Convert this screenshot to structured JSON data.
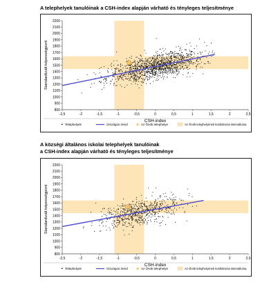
{
  "titles": {
    "chart1": "A telephelyek tanulóinak a CSH-index alapján várható és tényleges teljesítménye",
    "chart2_line1": "A községi általános iskolai telephelyek tanulóinak",
    "chart2_line2": "a CSH-index alapján várható és tényleges teljesítménye"
  },
  "colors": {
    "band": "#fde5b8",
    "trend": "#4a4ad0",
    "points": "#111111",
    "own_site": "#f6c36a",
    "axis": "#555555"
  },
  "chart_data": [
    {
      "type": "scatter",
      "xlabel": "CSH-index",
      "ylabel": "Standardizált képességpont",
      "xlim": [
        -2.5,
        2.5
      ],
      "ylim": [
        800,
        2200
      ],
      "xticks": [
        "-2,5",
        "-2",
        "-1,5",
        "-1",
        "-0,5",
        "0",
        "0,5",
        "1",
        "1,5",
        "2",
        "2,5"
      ],
      "yticks": [
        "800",
        "900",
        "1000",
        "1100",
        "1200",
        "1300",
        "1400",
        "1500",
        "1600",
        "1700",
        "1800",
        "1900",
        "2000",
        "2100",
        "2200"
      ],
      "confidence_band": {
        "x": [
          -1.1,
          -0.3
        ],
        "y": [
          1440,
          1640
        ]
      },
      "own_site": {
        "x": -0.7,
        "y": 1540
      },
      "trend": {
        "x": [
          -2.5,
          1.6
        ],
        "y": [
          1180,
          1670
        ]
      },
      "point_cloud": {
        "x_center": 0.0,
        "x_spread": 0.65,
        "x_min": -2.2,
        "x_max": 1.6,
        "noise": 95,
        "count": 1400,
        "seed": 11
      },
      "legend": [
        "Telephelyek",
        "Országos trend",
        "Az Önök telephelye",
        "Az Önök telephelyének konfidencia-intervalluma"
      ],
      "legend_position": "bottom"
    },
    {
      "type": "scatter",
      "xlabel": "CSH-index",
      "ylabel": "Standardizált képességpont",
      "xlim": [
        -2.5,
        2.5
      ],
      "ylim": [
        800,
        2200
      ],
      "xticks": [
        "-2,5",
        "-2",
        "-1,5",
        "-1",
        "-0,5",
        "0",
        "0,5",
        "1",
        "1,5",
        "2",
        "2,5"
      ],
      "yticks": [
        "800",
        "900",
        "1000",
        "1100",
        "1200",
        "1300",
        "1400",
        "1500",
        "1600",
        "1700",
        "1800",
        "1900",
        "2000",
        "2100",
        "2200"
      ],
      "confidence_band": {
        "x": [
          -1.1,
          -0.3
        ],
        "y": [
          1440,
          1640
        ]
      },
      "own_site": {
        "x": -0.75,
        "y": 1540
      },
      "trend": {
        "x": [
          -2.5,
          1.3
        ],
        "y": [
          1230,
          1640
        ]
      },
      "point_cloud": {
        "x_center": -0.45,
        "x_spread": 0.55,
        "x_min": -2.3,
        "x_max": 1.3,
        "noise": 105,
        "count": 650,
        "seed": 29
      },
      "legend": [
        "Telephelyek",
        "Országos trend",
        "Az Önök telephelye",
        "Az Önök telephelyének konfidencia-intervalluma"
      ],
      "legend_position": "bottom"
    }
  ]
}
